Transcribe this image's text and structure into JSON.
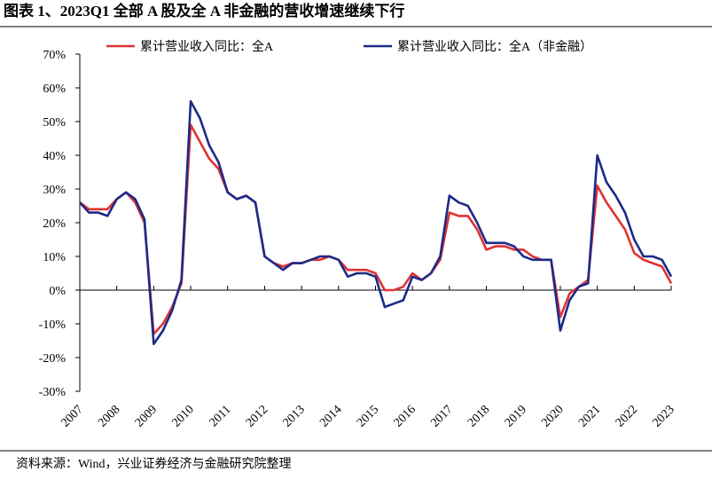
{
  "chart_data": {
    "type": "line",
    "title": "图表 1、2023Q1 全部 A 股及全 A 非金融的营收增速继续下行",
    "source": "资料来源：Wind，兴业证券经济与金融研究院整理",
    "categories": [
      "2007",
      null,
      null,
      null,
      "2008",
      null,
      null,
      null,
      "2009",
      null,
      null,
      null,
      "2010",
      null,
      null,
      null,
      "2011",
      null,
      null,
      null,
      "2012",
      null,
      null,
      null,
      "2013",
      null,
      null,
      null,
      "2014",
      null,
      null,
      null,
      "2015",
      null,
      null,
      null,
      "2016",
      null,
      null,
      null,
      "2017",
      null,
      null,
      null,
      "2018",
      null,
      null,
      null,
      "2019",
      null,
      null,
      null,
      "2020",
      null,
      null,
      null,
      "2021",
      null,
      null,
      null,
      "2022",
      null,
      null,
      null,
      "2023"
    ],
    "series": [
      {
        "name": "累计营业收入同比：全A",
        "color": "#e03232",
        "values": [
          26,
          24,
          24,
          24,
          27,
          29,
          26,
          20,
          -13,
          -10,
          -5,
          2,
          49,
          44,
          39,
          36,
          29,
          27,
          28,
          26,
          10,
          8,
          7,
          8,
          8,
          9,
          9,
          10,
          9,
          6,
          6,
          6,
          5,
          0,
          0,
          1,
          5,
          3,
          5,
          9,
          23,
          22,
          22,
          18,
          12,
          13,
          13,
          12,
          12,
          10,
          9,
          9,
          -8,
          -1,
          1,
          3,
          31,
          26,
          22,
          18,
          11,
          9,
          8,
          7,
          2
        ]
      },
      {
        "name": "累计营业收入同比：全A（非金融）",
        "color": "#1c2a88",
        "values": [
          26,
          23,
          23,
          22,
          27,
          29,
          27,
          21,
          -16,
          -12,
          -6,
          3,
          56,
          51,
          43,
          38,
          29,
          27,
          28,
          26,
          10,
          8,
          6,
          8,
          8,
          9,
          10,
          10,
          9,
          4,
          5,
          5,
          4,
          -5,
          -4,
          -3,
          4,
          3,
          5,
          10,
          28,
          26,
          25,
          20,
          14,
          14,
          14,
          13,
          10,
          9,
          9,
          9,
          -12,
          -3,
          1,
          2,
          40,
          32,
          28,
          23,
          15,
          10,
          10,
          9,
          4
        ]
      }
    ],
    "ylim": [
      -30,
      70
    ],
    "yticks": [
      {
        "value": -30,
        "label": "-30%"
      },
      {
        "value": -20,
        "label": "-20%"
      },
      {
        "value": -10,
        "label": "-10%"
      },
      {
        "value": 0,
        "label": "0%"
      },
      {
        "value": 10,
        "label": "10%"
      },
      {
        "value": 20,
        "label": "20%"
      },
      {
        "value": 30,
        "label": "30%"
      },
      {
        "value": 40,
        "label": "40%"
      },
      {
        "value": 50,
        "label": "50%"
      },
      {
        "value": 60,
        "label": "60%"
      },
      {
        "value": 70,
        "label": "70%"
      }
    ],
    "grid": false
  }
}
